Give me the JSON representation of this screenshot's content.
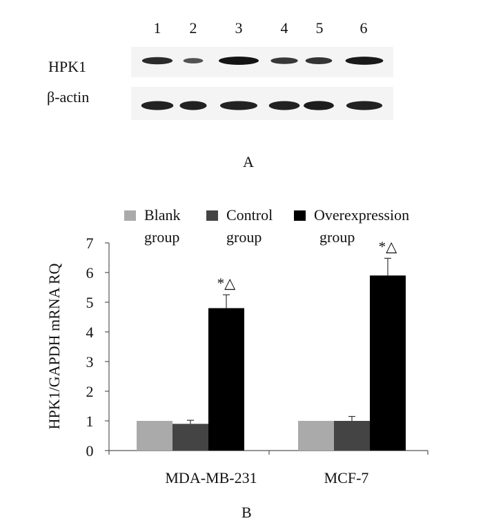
{
  "panel_a": {
    "label": "A",
    "lanes": [
      "1",
      "2",
      "3",
      "4",
      "5",
      "6"
    ],
    "rows": [
      {
        "label": "HPK1",
        "intensity": [
          0.75,
          0.3,
          1.0,
          0.6,
          0.65,
          0.95
        ]
      },
      {
        "label": "β-actin",
        "intensity": [
          0.85,
          0.85,
          0.85,
          0.85,
          0.9,
          0.85
        ]
      }
    ]
  },
  "panel_b": {
    "label": "B"
  },
  "chart_data": {
    "type": "bar",
    "categories": [
      "MDA-MB-231",
      "MCF-7"
    ],
    "series": [
      {
        "name": "Blank group",
        "values": [
          1.0,
          1.0
        ],
        "errors": [
          0.0,
          0.0
        ],
        "color": "#aaaaaa"
      },
      {
        "name": "Control group",
        "values": [
          0.9,
          1.0
        ],
        "errors": [
          0.12,
          0.15
        ],
        "color": "#444444"
      },
      {
        "name": "Overexpression group",
        "values": [
          4.8,
          5.9
        ],
        "errors": [
          0.45,
          0.58
        ],
        "color": "#000000"
      }
    ],
    "annotations": [
      "*△",
      "*△"
    ],
    "legend_lines": [
      [
        "Blank",
        "group"
      ],
      [
        "Control",
        "group"
      ],
      [
        "Overexpression",
        "group"
      ]
    ],
    "ylabel": "HPK1/GAPDH mRNA RQ",
    "xlabel": "",
    "ylim": [
      0,
      7
    ],
    "yticks": [
      "0",
      "1",
      "2",
      "3",
      "4",
      "5",
      "6",
      "7"
    ],
    "grid": false,
    "legend_position": "top"
  }
}
